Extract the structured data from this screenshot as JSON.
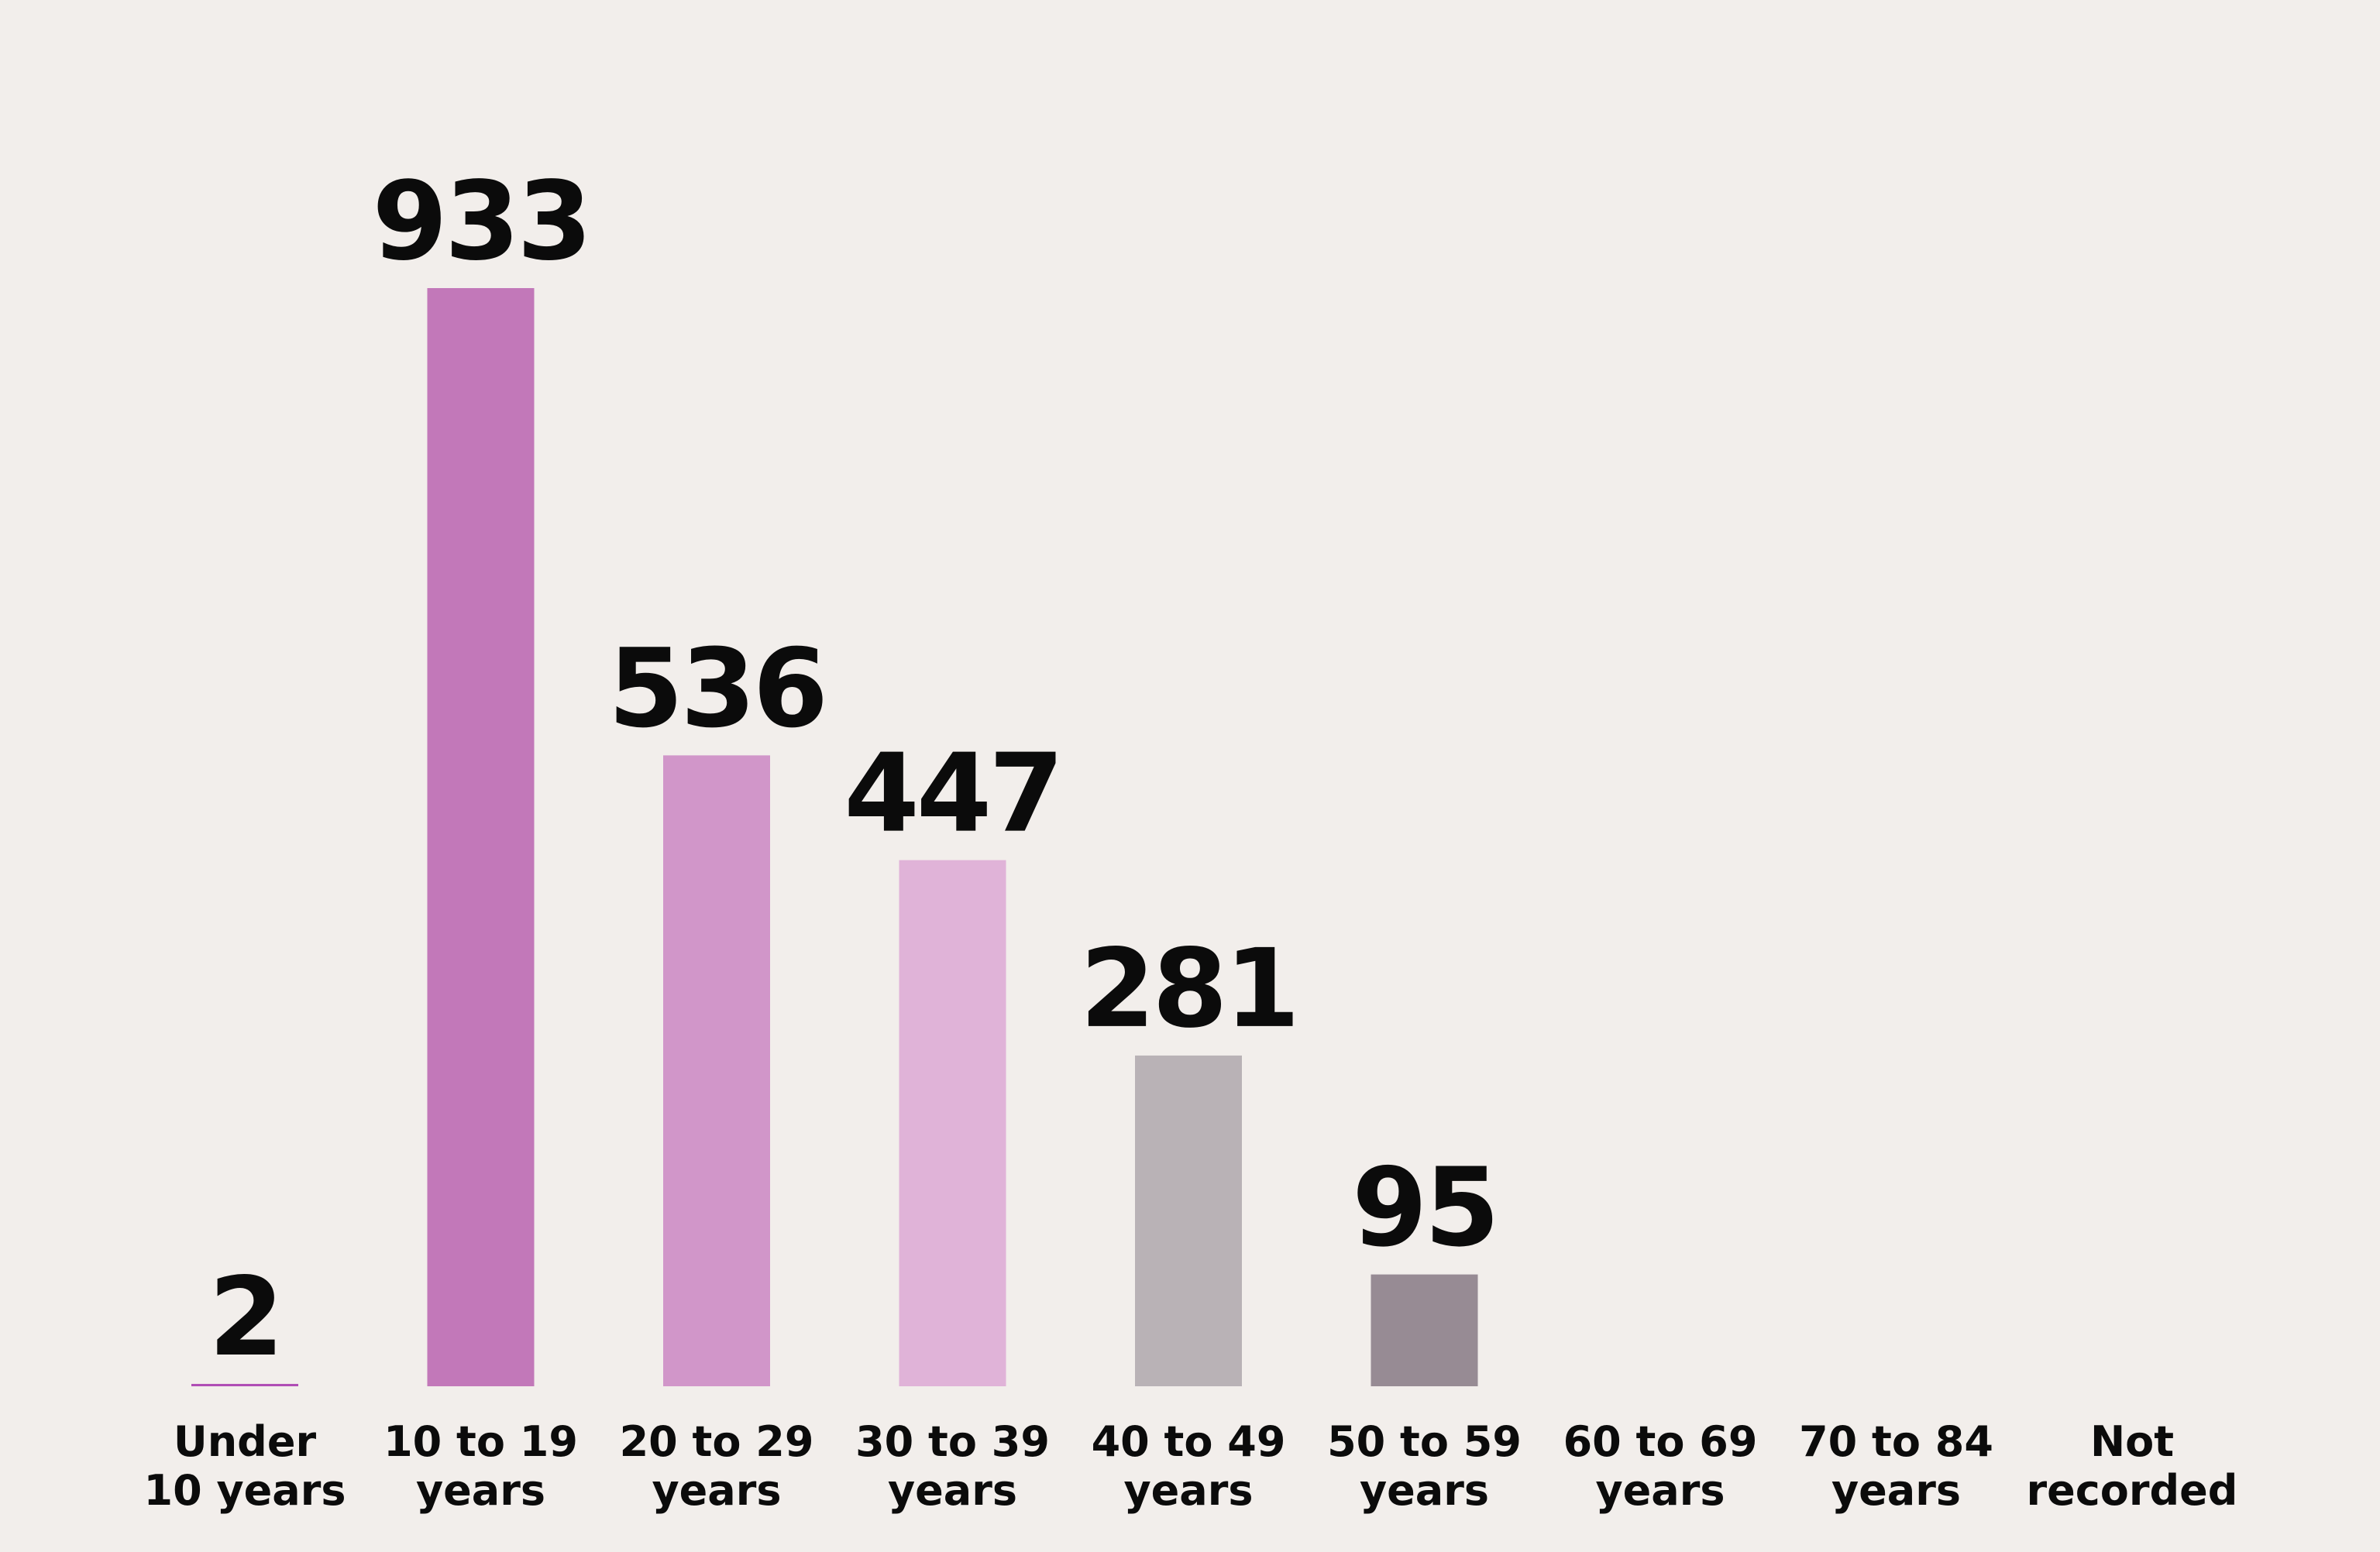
{
  "chart_data": {
    "type": "bar",
    "categories": [
      [
        "Under",
        "10 years"
      ],
      [
        "10 to 19",
        "years"
      ],
      [
        "20 to 29",
        "years"
      ],
      [
        "30 to 39",
        "years"
      ],
      [
        "40 to 49",
        "years"
      ],
      [
        "50 to 59",
        "years"
      ],
      [
        "60 to 69",
        "years"
      ],
      [
        "70 to 84",
        "years"
      ],
      [
        "Not",
        "recorded"
      ]
    ],
    "values": [
      2,
      933,
      536,
      447,
      281,
      95,
      null,
      null,
      null
    ],
    "value_labels": [
      "2",
      "933",
      "536",
      "447",
      "281",
      "95",
      "",
      "",
      ""
    ],
    "colors": [
      "#b04db5",
      "#c278b9",
      "#d196c9",
      "#e0b3d8",
      "#b9b2b6",
      "#978b94",
      "#978b94",
      "#978b94",
      "#978b94"
    ],
    "title": "",
    "xlabel": "",
    "ylabel": "",
    "ylim": [
      0,
      933
    ],
    "grid": false,
    "legend": "none"
  },
  "colors": {
    "background": "#f2eeeb",
    "text": "#0b0b0b"
  }
}
